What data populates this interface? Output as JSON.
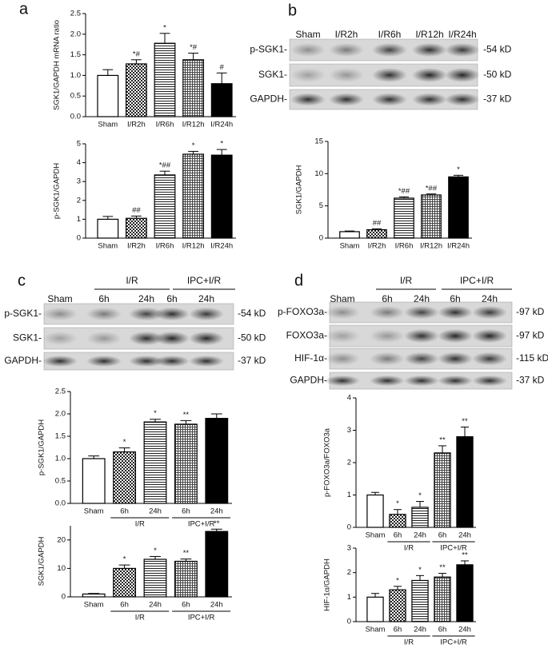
{
  "panel_labels": [
    "a",
    "b",
    "c",
    "d"
  ],
  "blots": [
    {
      "lanes": [
        "Sham",
        "I/R2h",
        "I/R6h",
        "I/R12h",
        "I/R24h"
      ],
      "rows": [
        {
          "name": "p-SGK1-",
          "size": "-54 kD"
        },
        {
          "name": "SGK1-",
          "size": "-50 kD"
        },
        {
          "name": "GAPDH-",
          "size": "-37 kD"
        }
      ]
    },
    {
      "lanes": [
        "Sham",
        "6h",
        "24h",
        "6h",
        "24h"
      ],
      "groups": [
        "I/R",
        "IPC+I/R"
      ],
      "rows": [
        {
          "name": "p-SGK1-",
          "size": "-54 kD"
        },
        {
          "name": "SGK1-",
          "size": "-50 kD"
        },
        {
          "name": "GAPDH-",
          "size": "-37 kD"
        }
      ]
    },
    {
      "lanes": [
        "Sham",
        "6h",
        "24h",
        "6h",
        "24h"
      ],
      "groups": [
        "I/R",
        "IPC+I/R"
      ],
      "rows": [
        {
          "name": "p-FOXO3a-",
          "size": "-97 kD"
        },
        {
          "name": "FOXO3a-",
          "size": "-97 kD"
        },
        {
          "name": "HIF-1α-",
          "size": "-115 kD"
        },
        {
          "name": "GAPDH-",
          "size": "-37 kD"
        }
      ]
    }
  ],
  "chart_data": [
    {
      "type": "bar",
      "y_label": "SGK1/GAPDH mRNA ratio",
      "categories": [
        "Sham",
        "I/R2h",
        "I/R6h",
        "I/R12h",
        "I/R24h"
      ],
      "values": [
        1.0,
        1.28,
        1.78,
        1.38,
        0.8
      ],
      "errors": [
        0.14,
        0.1,
        0.24,
        0.16,
        0.26
      ],
      "annotations": [
        null,
        "*#",
        "*",
        "*#",
        "#"
      ],
      "ylim": [
        0,
        2.5
      ],
      "yticks": [
        {
          "value": 0,
          "label": "0.0"
        },
        0.5,
        {
          "value": 1,
          "label": "1.0"
        },
        1.5,
        {
          "value": 2,
          "label": "2.0"
        },
        2.5
      ]
    },
    {
      "type": "bar",
      "y_label": "p-SGK1/GAPDH",
      "categories": [
        "Sham",
        "I/R2h",
        "I/R6h",
        "I/R12h",
        "I/R24h"
      ],
      "values": [
        1.0,
        1.05,
        3.35,
        4.45,
        4.4
      ],
      "errors": [
        0.15,
        0.12,
        0.2,
        0.15,
        0.3
      ],
      "annotations": [
        null,
        "##",
        "*##",
        "*",
        "*"
      ],
      "ylim": [
        0,
        5
      ],
      "yticks": [
        0,
        1,
        2,
        3,
        4,
        5
      ]
    },
    {
      "type": "bar",
      "y_label": "SGK1/GAPDH",
      "categories": [
        "Sham",
        "I/R2h",
        "I/R6h",
        "I/R12h",
        "I/R24h"
      ],
      "values": [
        1.0,
        1.3,
        6.2,
        6.7,
        9.5
      ],
      "errors": [
        0.1,
        0.15,
        0.2,
        0.15,
        0.25
      ],
      "annotations": [
        null,
        "##",
        "*##",
        "*##",
        "*"
      ],
      "ylim": [
        0,
        15
      ],
      "yticks": [
        0,
        5,
        10,
        15
      ]
    },
    {
      "type": "bar",
      "y_label": "p-SGK1/GAPDH",
      "categories": [
        "Sham",
        "6h",
        "24h",
        "6h",
        "24h"
      ],
      "groups": [
        "I/R",
        "IPC+I/R"
      ],
      "values": [
        1.0,
        1.15,
        1.82,
        1.77,
        1.9
      ],
      "errors": [
        0.06,
        0.09,
        0.06,
        0.08,
        0.1
      ],
      "annotations": [
        null,
        "*",
        "*",
        "**",
        null
      ],
      "ylim": [
        0,
        2.5
      ],
      "yticks": [
        {
          "value": 0,
          "label": "0.0"
        },
        0.5,
        {
          "value": 1,
          "label": "1.0"
        },
        1.5,
        {
          "value": 2,
          "label": "2.0"
        },
        2.5
      ]
    },
    {
      "type": "bar",
      "y_label": "SGK1/GAPDH",
      "categories": [
        "Sham",
        "6h",
        "24h",
        "6h",
        "24h"
      ],
      "groups": [
        "I/R",
        "IPC+I/R"
      ],
      "values": [
        1.0,
        10,
        13.2,
        12.5,
        23
      ],
      "errors": [
        0.2,
        1.2,
        1,
        0.8,
        0.8
      ],
      "annotations": [
        null,
        "*",
        "*",
        "**",
        "**"
      ],
      "ylim": [
        0,
        25
      ],
      "yticks": [
        0,
        10,
        20
      ]
    },
    {
      "type": "bar",
      "y_label": "p-FOXO3a/FOXO3a",
      "categories": [
        "Sham",
        "6h",
        "24h",
        "6h",
        "24h"
      ],
      "groups": [
        "I/R",
        "IPC+I/R"
      ],
      "values": [
        1.0,
        0.4,
        0.62,
        2.3,
        2.8
      ],
      "errors": [
        0.08,
        0.15,
        0.18,
        0.22,
        0.3
      ],
      "annotations": [
        null,
        "*",
        "*",
        "**",
        "**"
      ],
      "ylim": [
        0,
        4
      ],
      "yticks": [
        0,
        1,
        2,
        3,
        4
      ]
    },
    {
      "type": "bar",
      "y_label": "HIF-1α/GAPDH",
      "categories": [
        "Sham",
        "6h",
        "24h",
        "6h",
        "24h"
      ],
      "groups": [
        "I/R",
        "IPC+I/R"
      ],
      "values": [
        1.0,
        1.3,
        1.68,
        1.82,
        2.32
      ],
      "errors": [
        0.15,
        0.14,
        0.2,
        0.15,
        0.16
      ],
      "annotations": [
        null,
        "*",
        "*",
        "**",
        "**"
      ],
      "ylim": [
        0,
        3
      ],
      "yticks": [
        0,
        1,
        2,
        3
      ]
    }
  ]
}
